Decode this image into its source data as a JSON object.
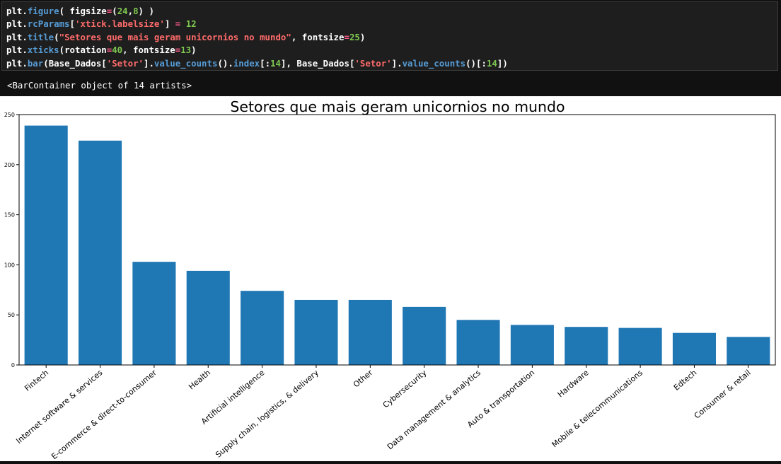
{
  "code": {
    "lines": [
      [
        [
          "kw",
          "plt."
        ],
        [
          "fn",
          "figure"
        ],
        [
          "kw",
          "( figsize"
        ],
        [
          "op",
          "="
        ],
        [
          "kw",
          "("
        ],
        [
          "num",
          "24"
        ],
        [
          "kw",
          ","
        ],
        [
          "num",
          "8"
        ],
        [
          "kw",
          ") )"
        ]
      ],
      [
        [
          "kw",
          "plt."
        ],
        [
          "fn",
          "rcParams"
        ],
        [
          "kw",
          "["
        ],
        [
          "str",
          "'xtick.labelsize'"
        ],
        [
          "kw",
          "] "
        ],
        [
          "op",
          "="
        ],
        [
          "kw",
          " "
        ],
        [
          "num",
          "12"
        ]
      ],
      [
        [
          "kw",
          "plt."
        ],
        [
          "fn",
          "title"
        ],
        [
          "kw",
          "("
        ],
        [
          "str",
          "\"Setores que mais geram unicornios no mundo\""
        ],
        [
          "kw",
          ", fontsize"
        ],
        [
          "op",
          "="
        ],
        [
          "num",
          "25"
        ],
        [
          "kw",
          ")"
        ]
      ],
      [
        [
          "kw",
          "plt."
        ],
        [
          "fn",
          "xticks"
        ],
        [
          "kw",
          "(rotation"
        ],
        [
          "op",
          "="
        ],
        [
          "num",
          "40"
        ],
        [
          "kw",
          ", fontsize"
        ],
        [
          "op",
          "="
        ],
        [
          "num",
          "13"
        ],
        [
          "kw",
          ")"
        ]
      ],
      [
        [
          "kw",
          "plt."
        ],
        [
          "fn",
          "bar"
        ],
        [
          "kw",
          "(Base_Dados["
        ],
        [
          "str",
          "'Setor'"
        ],
        [
          "kw",
          "]."
        ],
        [
          "fn",
          "value_counts"
        ],
        [
          "kw",
          "()."
        ],
        [
          "fn",
          "index"
        ],
        [
          "kw",
          "[:"
        ],
        [
          "num",
          "14"
        ],
        [
          "kw",
          "], Base_Dados["
        ],
        [
          "str",
          "'Setor'"
        ],
        [
          "kw",
          "]."
        ],
        [
          "fn",
          "value_counts"
        ],
        [
          "kw",
          "()[:"
        ],
        [
          "num",
          "14"
        ],
        [
          "kw",
          "])"
        ]
      ]
    ]
  },
  "output": {
    "text": "<BarContainer object of 14 artists>"
  },
  "colors": {
    "bar": "#1f77b4"
  },
  "chart_data": {
    "type": "bar",
    "title": "Setores que mais geram unicornios no mundo",
    "xlabel": "",
    "ylabel": "",
    "ylim": [
      0,
      250
    ],
    "yticks": [
      0,
      50,
      100,
      150,
      200,
      250
    ],
    "categories": [
      "Fintech",
      "Internet software & services",
      "E-commerce & direct-to-consumer",
      "Health",
      "Artificial intelligence",
      "Supply chain, logistics, & delivery",
      "Other",
      "Cybersecurity",
      "Data management & analytics",
      "Auto & transportation",
      "Hardware",
      "Mobile & telecommunications",
      "Edtech",
      "Consumer & retail"
    ],
    "values": [
      239,
      224,
      103,
      94,
      74,
      65,
      65,
      58,
      45,
      40,
      38,
      37,
      32,
      28
    ]
  }
}
